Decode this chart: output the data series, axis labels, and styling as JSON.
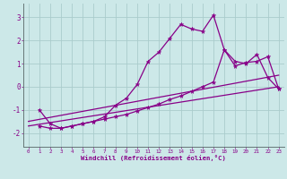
{
  "xlabel": "Windchill (Refroidissement éolien,°C)",
  "bg_color": "#cce8e8",
  "grid_color": "#aacccc",
  "line_color": "#880088",
  "xlim": [
    -0.5,
    23.5
  ],
  "ylim": [
    -2.6,
    3.6
  ],
  "xticks": [
    0,
    1,
    2,
    3,
    4,
    5,
    6,
    7,
    8,
    9,
    10,
    11,
    12,
    13,
    14,
    15,
    16,
    17,
    18,
    19,
    20,
    21,
    22,
    23
  ],
  "yticks": [
    -2,
    -1,
    0,
    1,
    2,
    3
  ],
  "series1_x": [
    1,
    2,
    3,
    4,
    5,
    6,
    7,
    8,
    9,
    10,
    11,
    12,
    13,
    14,
    15,
    16,
    17,
    18,
    19,
    20,
    21,
    22,
    23
  ],
  "series1_y": [
    -1.0,
    -1.6,
    -1.8,
    -1.7,
    -1.6,
    -1.5,
    -1.3,
    -0.8,
    -0.5,
    0.1,
    1.1,
    1.5,
    2.1,
    2.7,
    2.5,
    2.4,
    3.1,
    1.6,
    1.1,
    1.0,
    1.4,
    0.4,
    -0.1
  ],
  "series2_x": [
    1,
    2,
    3,
    4,
    5,
    6,
    7,
    8,
    9,
    10,
    11,
    12,
    13,
    14,
    15,
    16,
    17,
    18,
    19,
    20,
    21,
    22,
    23
  ],
  "series2_y": [
    -1.7,
    -1.8,
    -1.8,
    -1.7,
    -1.6,
    -1.5,
    -1.4,
    -1.3,
    -1.2,
    -1.05,
    -0.9,
    -0.75,
    -0.55,
    -0.4,
    -0.2,
    0.0,
    0.2,
    1.6,
    0.9,
    1.05,
    1.1,
    1.3,
    -0.1
  ],
  "series3_x": [
    0,
    23
  ],
  "series3_y": [
    -1.7,
    0.0
  ],
  "series4_x": [
    0,
    23
  ],
  "series4_y": [
    -1.5,
    0.5
  ]
}
